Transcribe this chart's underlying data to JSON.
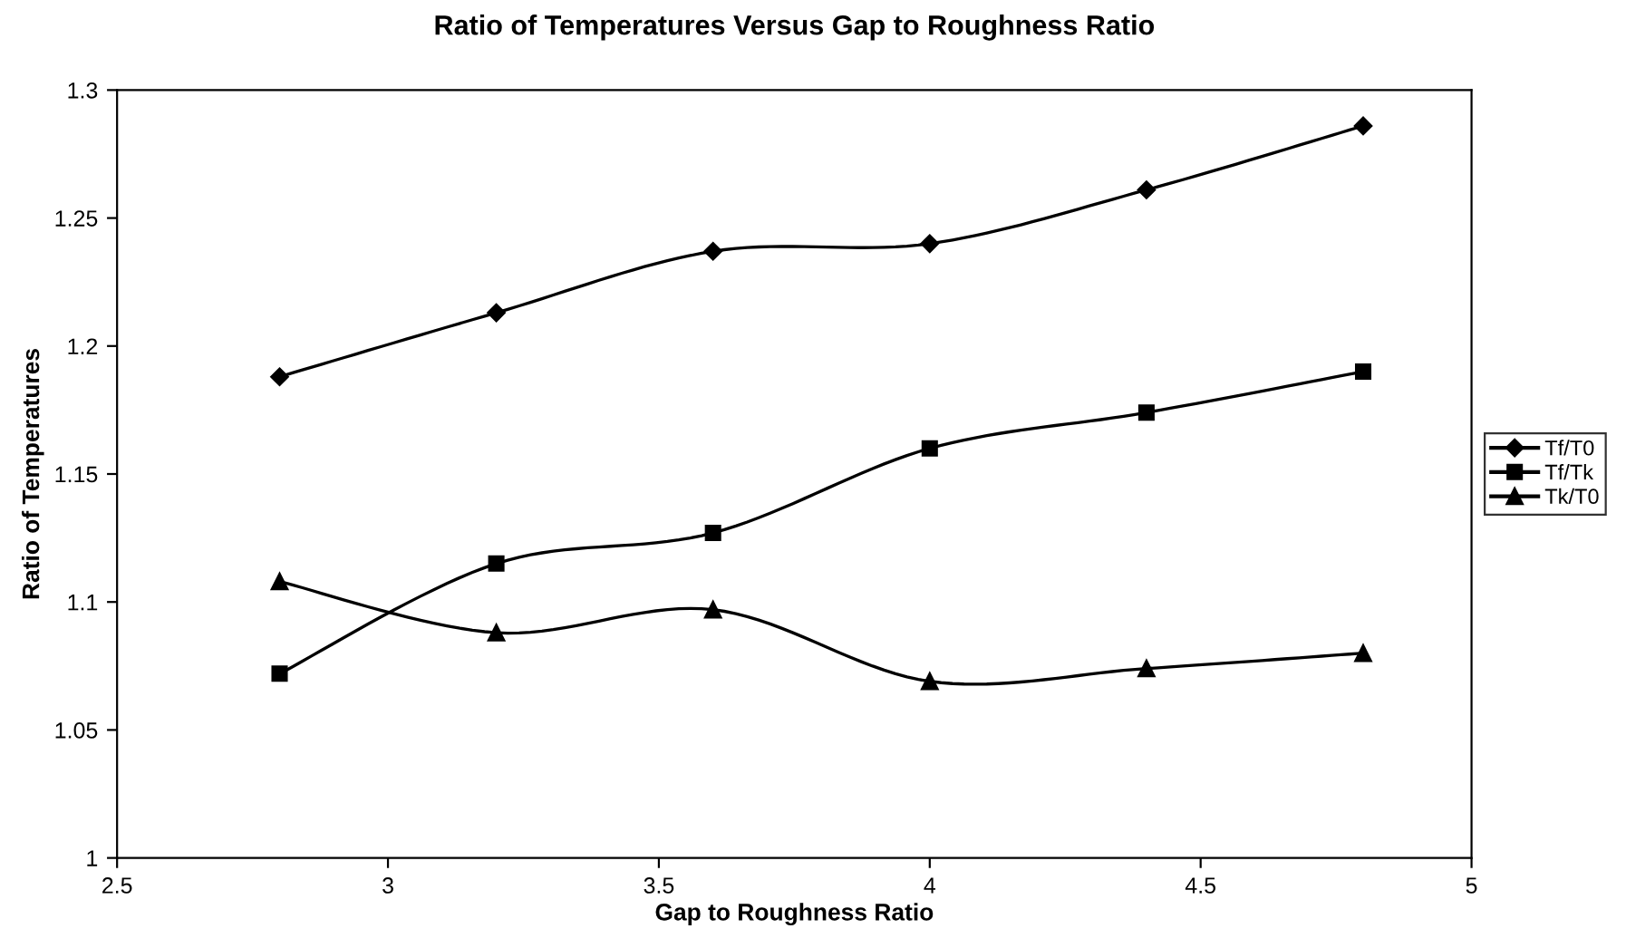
{
  "chart_data": {
    "type": "line",
    "title": "Ratio of Temperatures Versus Gap to Roughness Ratio",
    "xlabel": "Gap to Roughness Ratio",
    "ylabel": "Ratio of Temperatures",
    "x": [
      2.8,
      3.2,
      3.6,
      4.0,
      4.4,
      4.8
    ],
    "series": [
      {
        "name": "Tf/T0",
        "color": "#000000",
        "marker": "diamond",
        "values": [
          1.188,
          1.213,
          1.237,
          1.24,
          1.261,
          1.286
        ]
      },
      {
        "name": "Tf/Tk",
        "color": "#000000",
        "marker": "square",
        "values": [
          1.072,
          1.115,
          1.127,
          1.16,
          1.174,
          1.19
        ]
      },
      {
        "name": "Tk/T0",
        "color": "#000000",
        "marker": "triangle",
        "values": [
          1.108,
          1.088,
          1.097,
          1.069,
          1.074,
          1.08
        ]
      }
    ],
    "xlim": [
      2.5,
      5
    ],
    "xticks": [
      2.5,
      3,
      3.5,
      4,
      4.5,
      5
    ],
    "ylim": [
      1,
      1.3
    ],
    "yticks": [
      1,
      1.05,
      1.1,
      1.15,
      1.2,
      1.25,
      1.3
    ],
    "grid": false,
    "legend": "right",
    "line_style": "solid"
  }
}
